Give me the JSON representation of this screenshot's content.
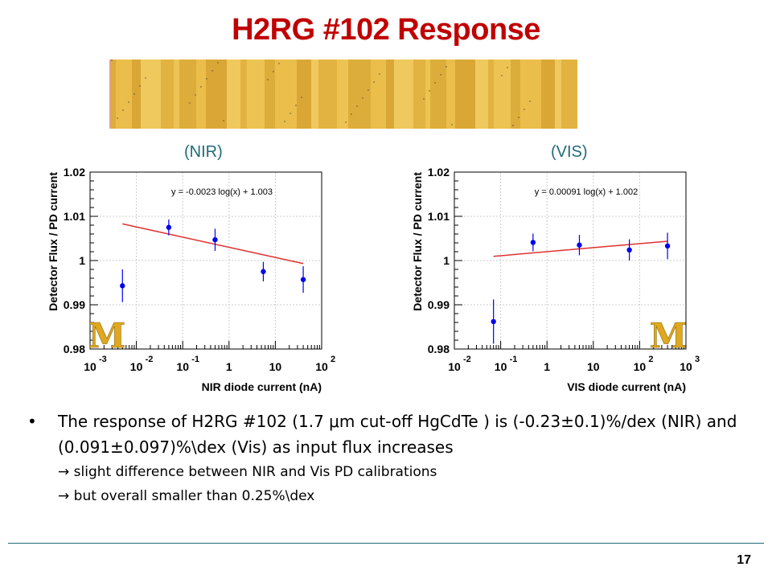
{
  "slide": {
    "title": "H2RG #102 Response",
    "page_number": "17"
  },
  "panels": {
    "nir_label": "(NIR)",
    "vis_label": "(VIS)"
  },
  "colors": {
    "title": "#c00000",
    "points": "#0000ee",
    "fit_line": "#e03030",
    "sensor_label": "#1f6b78",
    "logo": "#e0a81e"
  },
  "bullets": {
    "main": "The response of H2RG #102 (1.7 μm cut-off HgCdTe ) is (-0.23±0.1)%/dex (NIR) and (0.091±0.097)%\\dex (Vis) as input flux increases",
    "sub1": "→ slight difference between NIR and Vis PD calibrations",
    "sub2": "→ but overall smaller than 0.25%\\dex"
  },
  "logo_text": "M",
  "chart_data": [
    {
      "type": "scatter",
      "xlabel": "NIR diode current (nA)",
      "ylabel": "Detector Flux / PD current",
      "x_scale": "log",
      "xlim": [
        0.001,
        100
      ],
      "ylim": [
        0.98,
        1.02
      ],
      "x_ticks": [
        {
          "base": "10",
          "exp": "-3"
        },
        {
          "base": "10",
          "exp": "-2"
        },
        {
          "base": "10",
          "exp": "-1"
        },
        {
          "base": "1",
          "exp": ""
        },
        {
          "base": "10",
          "exp": ""
        },
        {
          "base": "10",
          "exp": "2"
        }
      ],
      "y_ticks": [
        "0.98",
        "0.99",
        "1",
        "1.01",
        "1.02"
      ],
      "points": [
        {
          "x": 0.005,
          "y": 0.9943,
          "err": 0.0037
        },
        {
          "x": 0.05,
          "y": 1.0075,
          "err": 0.0018
        },
        {
          "x": 0.5,
          "y": 1.0047,
          "err": 0.0025
        },
        {
          "x": 5.5,
          "y": 0.9975,
          "err": 0.0022
        },
        {
          "x": 40,
          "y": 0.9957,
          "err": 0.003
        }
      ],
      "fit": {
        "equation": "y = -0.0023 log(x) + 1.003",
        "slope": -0.0023,
        "intercept": 1.003,
        "x_range": [
          0.005,
          40
        ]
      }
    },
    {
      "type": "scatter",
      "xlabel": "VIS diode current (nA)",
      "ylabel": "Detector Flux / PD current",
      "x_scale": "log",
      "xlim": [
        0.01,
        1000
      ],
      "ylim": [
        0.98,
        1.02
      ],
      "x_ticks": [
        {
          "base": "10",
          "exp": "-2"
        },
        {
          "base": "10",
          "exp": "-1"
        },
        {
          "base": "1",
          "exp": ""
        },
        {
          "base": "10",
          "exp": ""
        },
        {
          "base": "10",
          "exp": "2"
        },
        {
          "base": "10",
          "exp": "3"
        }
      ],
      "y_ticks": [
        "0.98",
        "0.99",
        "1",
        "1.01",
        "1.02"
      ],
      "points": [
        {
          "x": 0.07,
          "y": 0.9862,
          "err": 0.005
        },
        {
          "x": 0.5,
          "y": 1.0041,
          "err": 0.002
        },
        {
          "x": 5,
          "y": 1.0035,
          "err": 0.0023
        },
        {
          "x": 60,
          "y": 1.0024,
          "err": 0.0024
        },
        {
          "x": 400,
          "y": 1.0033,
          "err": 0.003
        }
      ],
      "fit": {
        "equation": "y = 0.00091 log(x) + 1.002",
        "slope": 0.00091,
        "intercept": 1.002,
        "x_range": [
          0.07,
          400
        ]
      }
    }
  ]
}
